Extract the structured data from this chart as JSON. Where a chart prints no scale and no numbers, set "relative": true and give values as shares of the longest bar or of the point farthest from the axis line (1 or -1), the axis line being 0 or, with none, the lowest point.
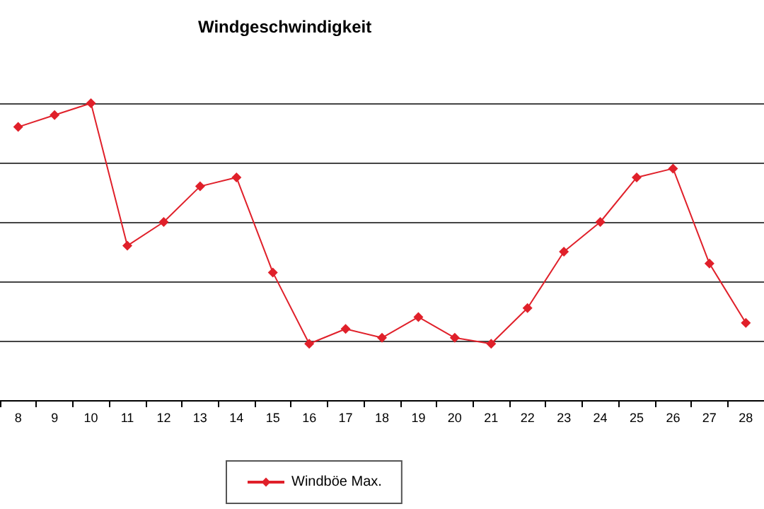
{
  "chart_data": {
    "type": "line",
    "title": "Windgeschwindigkeit",
    "relative": true,
    "categories": [
      "8",
      "9",
      "10",
      "11",
      "12",
      "13",
      "14",
      "15",
      "16",
      "17",
      "18",
      "19",
      "20",
      "21",
      "22",
      "23",
      "24",
      "25",
      "26",
      "27",
      "28"
    ],
    "series": [
      {
        "name": "Windböe Max.",
        "color": "#e0202a",
        "values": [
          0.92,
          0.96,
          1,
          0.52,
          0.6,
          0.72,
          0.75,
          0.43,
          0.19,
          0.24,
          0.21,
          0.28,
          0.21,
          0.19,
          0.31,
          0.5,
          0.6,
          0.75,
          0.78,
          0.46,
          0.26
        ]
      }
    ],
    "grid": "y",
    "legend": "bottom",
    "marker": "diamond",
    "line_style": "solid"
  }
}
